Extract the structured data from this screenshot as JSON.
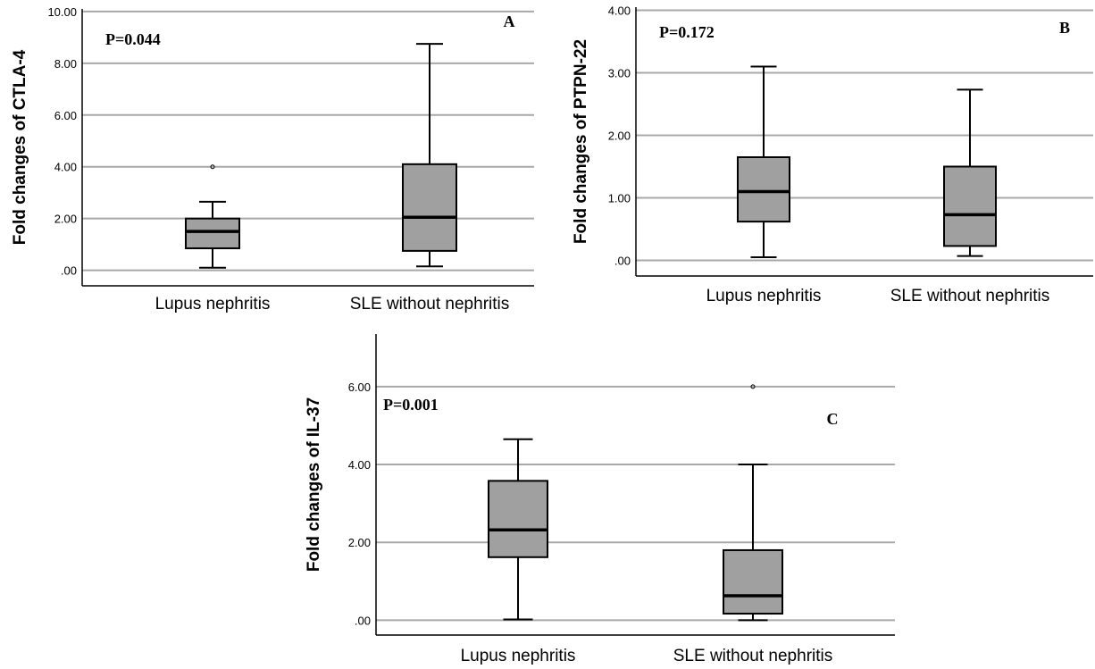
{
  "chart_data": [
    {
      "type": "box",
      "panel_letter": "A",
      "p_value": "P=0.044",
      "ylabel": "Fold changes of CTLA-4",
      "ylim": [
        -0.6,
        10.1
      ],
      "yticks": [
        0,
        2,
        4,
        6,
        8,
        10
      ],
      "ytick_labels": [
        ".00",
        "2.00",
        "4.00",
        "6.00",
        "8.00",
        "10.00"
      ],
      "grid": true,
      "categories": [
        "Lupus nephritis",
        "SLE without nephritis"
      ],
      "boxes": [
        {
          "min": 0.1,
          "q1": 0.85,
          "median": 1.5,
          "q3": 2.0,
          "max": 2.65,
          "outliers": [
            4.0
          ]
        },
        {
          "min": 0.15,
          "q1": 0.75,
          "median": 2.05,
          "q3": 4.1,
          "max": 8.75,
          "outliers": []
        }
      ]
    },
    {
      "type": "box",
      "panel_letter": "B",
      "p_value": "P=0.172",
      "ylabel": "Fold changes of PTPN-22",
      "ylim": [
        -0.25,
        4.05
      ],
      "yticks": [
        0,
        1,
        2,
        3,
        4
      ],
      "ytick_labels": [
        ".00",
        "1.00",
        "2.00",
        "3.00",
        "4.00"
      ],
      "grid": true,
      "categories": [
        "Lupus nephritis",
        "SLE without nephritis"
      ],
      "boxes": [
        {
          "min": 0.05,
          "q1": 0.62,
          "median": 1.1,
          "q3": 1.65,
          "max": 3.1,
          "outliers": []
        },
        {
          "min": 0.07,
          "q1": 0.23,
          "median": 0.73,
          "q3": 1.5,
          "max": 2.73,
          "outliers": []
        }
      ]
    },
    {
      "type": "box",
      "panel_letter": "C",
      "p_value": "P=0.001",
      "ylabel": "Fold changes of IL-37",
      "ylim": [
        -0.38,
        7.35
      ],
      "yticks": [
        0,
        2,
        4,
        6
      ],
      "ytick_labels": [
        ".00",
        "2.00",
        "4.00",
        "6.00"
      ],
      "grid": true,
      "categories": [
        "Lupus nephritis",
        "SLE without nephritis"
      ],
      "boxes": [
        {
          "min": 0.02,
          "q1": 1.62,
          "median": 2.32,
          "q3": 3.58,
          "max": 4.65,
          "outliers": []
        },
        {
          "min": 0.0,
          "q1": 0.17,
          "median": 0.63,
          "q3": 1.8,
          "max": 4.0,
          "outliers": [
            6.0
          ]
        }
      ]
    }
  ],
  "colors": {
    "box_fill": "#a0a0a0",
    "box_stroke": "#000000",
    "grid": "#a8a8a8",
    "axis": "#000000",
    "text": "#000000"
  }
}
